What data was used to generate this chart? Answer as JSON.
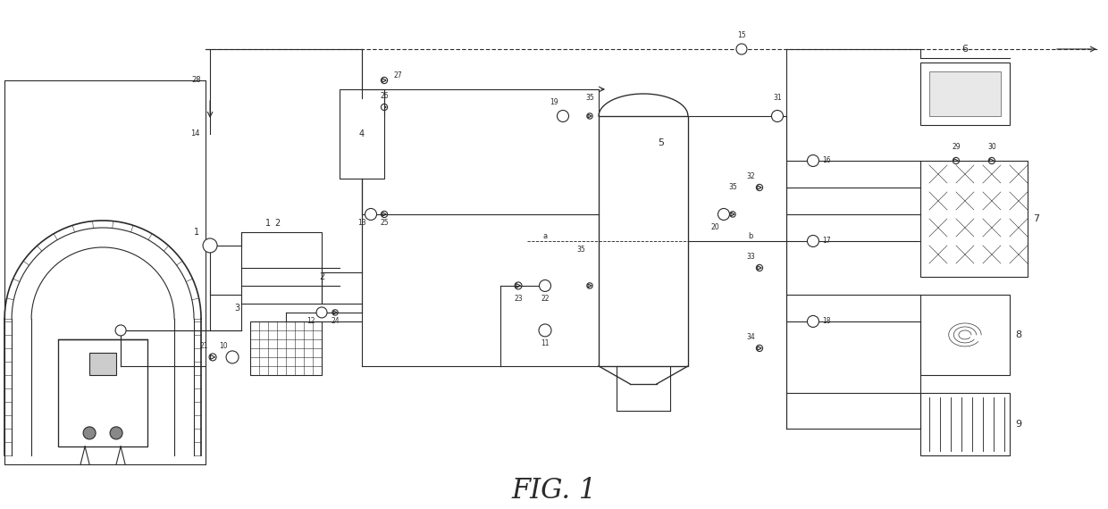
{
  "title": "FIG. 1",
  "bg_color": "#ffffff",
  "line_color": "#2a2a2a",
  "fig_width": 12.4,
  "fig_height": 5.7
}
